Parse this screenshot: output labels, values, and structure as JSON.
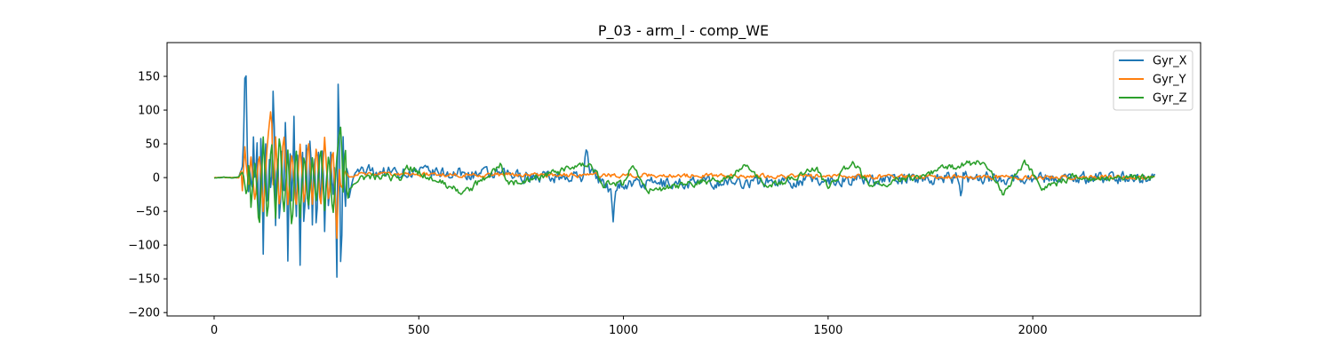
{
  "chart_data": {
    "type": "line",
    "title": "P_03 - arm_l - comp_WE",
    "xlabel": "",
    "ylabel": "",
    "xlim": [
      -115,
      2410
    ],
    "ylim": [
      -205,
      200
    ],
    "x_ticks": [
      0,
      500,
      1000,
      1500,
      2000
    ],
    "y_ticks": [
      -200,
      -150,
      -100,
      -50,
      0,
      50,
      100,
      150
    ],
    "x_tick_labels": [
      "0",
      "500",
      "1000",
      "1500",
      "2000"
    ],
    "y_tick_labels": [
      "−200",
      "−150",
      "−100",
      "−50",
      "0",
      "50",
      "100",
      "150"
    ],
    "legend_position": "top-right",
    "x_max": 2300,
    "series": [
      {
        "name": "Gyr_X",
        "color": "#1f77b4",
        "keypoints": [
          [
            0,
            0
          ],
          [
            60,
            0
          ],
          [
            70,
            20
          ],
          [
            72,
            60
          ],
          [
            74,
            120
          ],
          [
            76,
            180
          ],
          [
            78,
            150
          ],
          [
            80,
            60
          ],
          [
            84,
            -20
          ],
          [
            88,
            30
          ],
          [
            92,
            -40
          ],
          [
            96,
            60
          ],
          [
            100,
            -20
          ],
          [
            105,
            50
          ],
          [
            110,
            -100
          ],
          [
            115,
            100
          ],
          [
            120,
            -115
          ],
          [
            125,
            80
          ],
          [
            130,
            -60
          ],
          [
            135,
            30
          ],
          [
            140,
            -40
          ],
          [
            145,
            170
          ],
          [
            150,
            -70
          ],
          [
            155,
            60
          ],
          [
            160,
            -90
          ],
          [
            165,
            40
          ],
          [
            170,
            -50
          ],
          [
            175,
            118
          ],
          [
            180,
            -125
          ],
          [
            185,
            60
          ],
          [
            190,
            -60
          ],
          [
            195,
            88
          ],
          [
            200,
            -90
          ],
          [
            205,
            60
          ],
          [
            210,
            -130
          ],
          [
            215,
            70
          ],
          [
            220,
            -100
          ],
          [
            225,
            50
          ],
          [
            230,
            -80
          ],
          [
            235,
            85
          ],
          [
            240,
            -70
          ],
          [
            245,
            60
          ],
          [
            250,
            -100
          ],
          [
            255,
            40
          ],
          [
            260,
            -50
          ],
          [
            265,
            60
          ],
          [
            270,
            -80
          ],
          [
            275,
            30
          ],
          [
            280,
            -60
          ],
          [
            285,
            40
          ],
          [
            290,
            -40
          ],
          [
            295,
            30
          ],
          [
            300,
            -145
          ],
          [
            303,
            140
          ],
          [
            306,
            60
          ],
          [
            310,
            -185
          ],
          [
            315,
            60
          ],
          [
            320,
            -60
          ],
          [
            325,
            30
          ],
          [
            330,
            -30
          ],
          [
            340,
            0
          ],
          [
            350,
            10
          ],
          [
            900,
            0
          ],
          [
            910,
            45
          ],
          [
            920,
            10
          ],
          [
            970,
            -20
          ],
          [
            975,
            -60
          ],
          [
            980,
            -10
          ],
          [
            1820,
            0
          ],
          [
            1825,
            -38
          ],
          [
            1830,
            0
          ],
          [
            2300,
            0
          ]
        ],
        "noise_amp": 14
      },
      {
        "name": "Gyr_Y",
        "color": "#ff7f0e",
        "keypoints": [
          [
            0,
            0
          ],
          [
            60,
            0
          ],
          [
            66,
            10
          ],
          [
            70,
            -28
          ],
          [
            74,
            55
          ],
          [
            78,
            20
          ],
          [
            84,
            -10
          ],
          [
            90,
            30
          ],
          [
            100,
            -40
          ],
          [
            110,
            40
          ],
          [
            120,
            -50
          ],
          [
            130,
            50
          ],
          [
            140,
            110
          ],
          [
            145,
            -40
          ],
          [
            150,
            60
          ],
          [
            160,
            -50
          ],
          [
            170,
            70
          ],
          [
            180,
            -40
          ],
          [
            190,
            40
          ],
          [
            200,
            -50
          ],
          [
            210,
            50
          ],
          [
            220,
            -45
          ],
          [
            230,
            60
          ],
          [
            240,
            -40
          ],
          [
            250,
            50
          ],
          [
            260,
            -50
          ],
          [
            270,
            60
          ],
          [
            280,
            -40
          ],
          [
            290,
            50
          ],
          [
            300,
            -90
          ],
          [
            305,
            20
          ],
          [
            310,
            -20
          ],
          [
            320,
            10
          ],
          [
            330,
            0
          ],
          [
            360,
            5
          ],
          [
            2300,
            0
          ]
        ],
        "noise_amp": 5
      },
      {
        "name": "Gyr_Z",
        "color": "#2ca02c",
        "keypoints": [
          [
            0,
            0
          ],
          [
            60,
            0
          ],
          [
            70,
            10
          ],
          [
            80,
            -30
          ],
          [
            85,
            30
          ],
          [
            90,
            -45
          ],
          [
            100,
            30
          ],
          [
            110,
            -80
          ],
          [
            120,
            60
          ],
          [
            130,
            -70
          ],
          [
            140,
            60
          ],
          [
            150,
            -60
          ],
          [
            160,
            70
          ],
          [
            170,
            -60
          ],
          [
            180,
            40
          ],
          [
            190,
            -80
          ],
          [
            200,
            50
          ],
          [
            210,
            -60
          ],
          [
            220,
            40
          ],
          [
            230,
            -50
          ],
          [
            240,
            30
          ],
          [
            250,
            -40
          ],
          [
            260,
            50
          ],
          [
            270,
            -50
          ],
          [
            280,
            40
          ],
          [
            290,
            -60
          ],
          [
            300,
            30
          ],
          [
            305,
            60
          ],
          [
            310,
            80
          ],
          [
            315,
            -20
          ],
          [
            320,
            60
          ],
          [
            325,
            -40
          ],
          [
            330,
            -20
          ],
          [
            340,
            -10
          ],
          [
            360,
            0
          ],
          [
            460,
            0
          ],
          [
            470,
            15
          ],
          [
            490,
            10
          ],
          [
            600,
            -20
          ],
          [
            620,
            -20
          ],
          [
            700,
            18
          ],
          [
            720,
            -10
          ],
          [
            920,
            20
          ],
          [
            950,
            -10
          ],
          [
            1000,
            -10
          ],
          [
            1020,
            20
          ],
          [
            1060,
            -20
          ],
          [
            1260,
            0
          ],
          [
            1300,
            18
          ],
          [
            1340,
            -10
          ],
          [
            1380,
            -10
          ],
          [
            1470,
            15
          ],
          [
            1500,
            -15
          ],
          [
            1560,
            25
          ],
          [
            1600,
            -12
          ],
          [
            1700,
            0
          ],
          [
            1800,
            15
          ],
          [
            1880,
            25
          ],
          [
            1930,
            -25
          ],
          [
            1980,
            25
          ],
          [
            2020,
            -15
          ],
          [
            2100,
            0
          ],
          [
            2300,
            0
          ]
        ],
        "noise_amp": 8
      }
    ]
  }
}
